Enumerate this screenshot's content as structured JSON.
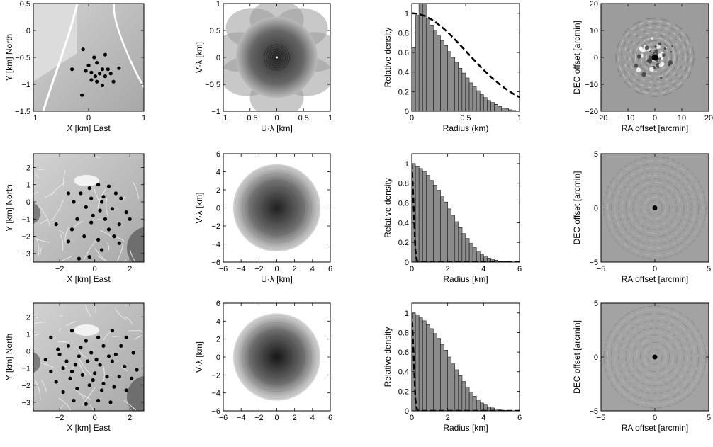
{
  "chart_data": [
    {
      "type": "scatter",
      "variant": "array-layout",
      "row": 1,
      "xlabel": "X [km] East",
      "ylabel": "Y [km] North",
      "xlim": [
        -1,
        1
      ],
      "ylim": [
        -1.5,
        0.5
      ],
      "xticks": [
        -1,
        0,
        1
      ],
      "yticks": [
        -1.5,
        -1,
        -0.5,
        0,
        0.5
      ],
      "points": [
        [
          -0.1,
          -0.35
        ],
        [
          0.1,
          -0.5
        ],
        [
          0.3,
          -0.45
        ],
        [
          -0.3,
          -0.72
        ],
        [
          -0.05,
          -0.75
        ],
        [
          0.15,
          -0.6
        ],
        [
          0.25,
          -0.72
        ],
        [
          0.35,
          -0.72
        ],
        [
          0.55,
          -0.7
        ],
        [
          0.05,
          -0.78
        ],
        [
          0.2,
          -0.8
        ],
        [
          0.3,
          -0.85
        ],
        [
          0.4,
          -0.8
        ],
        [
          0.05,
          -0.92
        ],
        [
          0.15,
          -0.95
        ],
        [
          0.25,
          -1.02
        ],
        [
          0.45,
          -0.95
        ],
        [
          -0.12,
          -1.2
        ],
        [
          0.0,
          -0.65
        ],
        [
          0.12,
          -0.85
        ]
      ],
      "colors": {
        "background": "#bdbdbd",
        "points": "#000000"
      }
    },
    {
      "type": "heatmap",
      "variant": "uv-coverage",
      "row": 1,
      "xlabel": "U·λ [km]",
      "ylabel": "V·λ [km]",
      "xlim": [
        -1,
        1
      ],
      "ylim": [
        -1,
        1
      ],
      "xticks": [
        -1,
        -0.5,
        0,
        0.5,
        1
      ],
      "yticks": [
        -1,
        -0.5,
        0,
        0.5,
        1
      ],
      "extent_km": 0.95,
      "colors": {
        "center": "#2a2a2a",
        "edge": "#bbbbbb"
      }
    },
    {
      "type": "bar",
      "variant": "radial-density",
      "row": 1,
      "xlabel": "Radius (km)",
      "ylabel": "Relative density",
      "xlim": [
        0,
        1
      ],
      "ylim": [
        0,
        1.1
      ],
      "xticks": [
        0,
        0.5,
        1
      ],
      "yticks": [
        0,
        0.2,
        0.4,
        0.6,
        0.8,
        1
      ],
      "bin_width": 0.0333,
      "values": [
        0.65,
        0.98,
        1.3,
        1.2,
        0.95,
        0.88,
        0.83,
        0.77,
        0.72,
        0.67,
        0.61,
        0.55,
        0.5,
        0.44,
        0.39,
        0.34,
        0.29,
        0.25,
        0.21,
        0.17,
        0.14,
        0.11,
        0.09,
        0.07,
        0.05,
        0.035,
        0.025,
        0.015,
        0.008,
        0.004
      ],
      "curve_scale": 1.0,
      "colors": {
        "bars": "#8c8c8c",
        "curve": "#000000"
      }
    },
    {
      "type": "heatmap",
      "variant": "synthesized-beam",
      "row": 1,
      "xlabel": "RA offset [arcmin]",
      "ylabel": "DEC offset [arcmin]",
      "xlim": [
        -20,
        20
      ],
      "ylim": [
        -20,
        20
      ],
      "xticks": [
        -20,
        -10,
        0,
        10,
        20
      ],
      "yticks": [
        -20,
        -10,
        0,
        10,
        20
      ],
      "colors": {
        "background": "#9c9c9c",
        "peak": "#000000"
      }
    },
    {
      "type": "scatter",
      "variant": "array-layout",
      "row": 2,
      "xlabel": "X [km] East",
      "ylabel": "Y [km] North",
      "xlim": [
        -3.5,
        2.8
      ],
      "ylim": [
        -3.5,
        2.8
      ],
      "xticks": [
        -2,
        0,
        2
      ],
      "yticks": [
        -3,
        -2,
        -1,
        0,
        1,
        2
      ],
      "points": [
        [
          -1.5,
          0.5
        ],
        [
          -0.3,
          0.8
        ],
        [
          0.2,
          1.0
        ],
        [
          0.8,
          0.9
        ],
        [
          1.2,
          0.5
        ],
        [
          -0.8,
          0.5
        ],
        [
          -1.2,
          0.0
        ],
        [
          -0.2,
          0.2
        ],
        [
          0.5,
          0.3
        ],
        [
          1.5,
          0.2
        ],
        [
          -2.2,
          -1.3
        ],
        [
          -1.5,
          -2.3
        ],
        [
          -0.5,
          -0.3
        ],
        [
          0.3,
          -0.5
        ],
        [
          1.0,
          -0.4
        ],
        [
          1.8,
          -0.6
        ],
        [
          -1.0,
          -1.0
        ],
        [
          -0.2,
          -1.2
        ],
        [
          0.6,
          -1.0
        ],
        [
          1.4,
          -1.3
        ],
        [
          2.0,
          -1.0
        ],
        [
          -0.6,
          -2.0
        ],
        [
          0.2,
          -2.2
        ],
        [
          1.1,
          -2.0
        ],
        [
          -0.3,
          -3.2
        ],
        [
          -0.9,
          -3.3
        ],
        [
          0.4,
          -2.8
        ],
        [
          1.4,
          -2.4
        ],
        [
          -1.3,
          -1.6
        ],
        [
          0.8,
          -1.6
        ],
        [
          -0.1,
          -0.8
        ],
        [
          0.4,
          0.0
        ]
      ],
      "colors": {
        "background": "#b0b0b0",
        "points": "#000000"
      }
    },
    {
      "type": "heatmap",
      "variant": "uv-coverage",
      "row": 2,
      "xlabel": "U·λ [km]",
      "ylabel": "V·λ [km]",
      "xlim": [
        -6,
        6
      ],
      "ylim": [
        -6,
        6
      ],
      "xticks": [
        -6,
        -4,
        -2,
        0,
        2,
        4,
        6
      ],
      "yticks": [
        -6,
        -4,
        -2,
        0,
        2,
        4,
        6
      ],
      "extent_km": 4.9,
      "colors": {
        "center": "#202020",
        "edge": "#d4d4d4"
      }
    },
    {
      "type": "bar",
      "variant": "radial-density",
      "row": 2,
      "xlabel": "Radius [km]",
      "ylabel": "Relative density",
      "xlim": [
        0,
        6
      ],
      "ylim": [
        0,
        1.1
      ],
      "xticks": [
        0,
        2,
        4,
        6
      ],
      "yticks": [
        0,
        0.2,
        0.4,
        0.6,
        0.8,
        1
      ],
      "bin_width": 0.2,
      "values": [
        1.0,
        0.97,
        0.95,
        0.92,
        0.88,
        0.83,
        0.78,
        0.73,
        0.67,
        0.61,
        0.54,
        0.47,
        0.41,
        0.35,
        0.29,
        0.24,
        0.19,
        0.15,
        0.11,
        0.08,
        0.06,
        0.04,
        0.03,
        0.02,
        0.01,
        0.006,
        0.004,
        0.003,
        0.002,
        0.001
      ],
      "curve_scale": 0.19,
      "colors": {
        "bars": "#8c8c8c",
        "curve": "#000000"
      }
    },
    {
      "type": "heatmap",
      "variant": "synthesized-beam",
      "row": 2,
      "xlabel": "RA offset [arcmin]",
      "ylabel": "DEC offset [arcmin]",
      "xlim": [
        -5,
        5
      ],
      "ylim": [
        -5,
        5
      ],
      "xticks": [
        -5,
        0,
        5
      ],
      "yticks": [
        -5,
        0,
        5
      ],
      "colors": {
        "background": "#a0a0a0",
        "peak": "#000000"
      }
    },
    {
      "type": "scatter",
      "variant": "array-layout",
      "row": 3,
      "xlabel": "X [km] East",
      "ylabel": "Y [km] North",
      "xlim": [
        -3.5,
        2.8
      ],
      "ylim": [
        -3.5,
        2.8
      ],
      "xticks": [
        -2,
        0,
        2
      ],
      "yticks": [
        -3,
        -2,
        -1,
        0,
        1,
        2
      ],
      "points": [
        [
          -2.5,
          0.8
        ],
        [
          -1.3,
          1.2
        ],
        [
          0.2,
          0.8
        ],
        [
          1.0,
          1.2
        ],
        [
          1.8,
          0.8
        ],
        [
          -2.8,
          -0.5
        ],
        [
          -2.0,
          -0.2
        ],
        [
          -1.5,
          0.3
        ],
        [
          -0.8,
          0.2
        ],
        [
          -0.2,
          -0.1
        ],
        [
          0.5,
          0.3
        ],
        [
          1.2,
          -0.2
        ],
        [
          2.2,
          -0.1
        ],
        [
          -2.5,
          -1.2
        ],
        [
          -1.8,
          -1.0
        ],
        [
          -1.1,
          -0.8
        ],
        [
          -0.4,
          -0.6
        ],
        [
          0.3,
          -0.8
        ],
        [
          1.0,
          -0.6
        ],
        [
          1.7,
          -0.9
        ],
        [
          -2.2,
          -1.8
        ],
        [
          -1.4,
          -1.6
        ],
        [
          -0.7,
          -1.4
        ],
        [
          0.0,
          -1.3
        ],
        [
          0.7,
          -1.5
        ],
        [
          1.4,
          -1.5
        ],
        [
          2.1,
          -1.6
        ],
        [
          -1.8,
          -2.4
        ],
        [
          -1.0,
          -2.2
        ],
        [
          -0.3,
          -2.0
        ],
        [
          0.4,
          -2.3
        ],
        [
          1.1,
          -2.1
        ],
        [
          1.8,
          -2.3
        ],
        [
          -1.2,
          -2.9
        ],
        [
          -0.5,
          -3.1
        ],
        [
          0.2,
          -2.9
        ],
        [
          0.9,
          -3.0
        ],
        [
          -0.9,
          -0.3
        ],
        [
          0.8,
          -0.3
        ],
        [
          -0.5,
          0.6
        ],
        [
          0.1,
          -0.5
        ],
        [
          -1.6,
          -0.6
        ],
        [
          1.5,
          0.3
        ],
        [
          -2.1,
          0.1
        ],
        [
          2.4,
          -1.1
        ],
        [
          -0.1,
          -1.7
        ],
        [
          0.5,
          -1.9
        ],
        [
          -1.3,
          -1.2
        ]
      ],
      "colors": {
        "background": "#b0b0b0",
        "points": "#000000"
      }
    },
    {
      "type": "heatmap",
      "variant": "uv-coverage",
      "row": 3,
      "xlabel": "U·λ [km]",
      "ylabel": "V·λ [km]",
      "xlim": [
        -6,
        6
      ],
      "ylim": [
        -6,
        6
      ],
      "xticks": [
        -6,
        -4,
        -2,
        0,
        2,
        4,
        6
      ],
      "yticks": [
        -6,
        -4,
        -2,
        0,
        2,
        4,
        6
      ],
      "extent_km": 4.9,
      "colors": {
        "center": "#161616",
        "edge": "#d9d9d9"
      }
    },
    {
      "type": "bar",
      "variant": "radial-density",
      "row": 3,
      "xlabel": "Radius [km]",
      "ylabel": "Relative density",
      "xlim": [
        0,
        6
      ],
      "ylim": [
        0,
        1.1
      ],
      "xticks": [
        0,
        2,
        4,
        6
      ],
      "yticks": [
        0,
        0.2,
        0.4,
        0.6,
        0.8,
        1
      ],
      "bin_width": 0.2,
      "values": [
        1.0,
        0.98,
        0.95,
        0.92,
        0.88,
        0.84,
        0.79,
        0.74,
        0.68,
        0.62,
        0.55,
        0.48,
        0.42,
        0.36,
        0.3,
        0.24,
        0.19,
        0.15,
        0.11,
        0.08,
        0.06,
        0.04,
        0.03,
        0.02,
        0.01,
        0.006,
        0.004,
        0.003,
        0.002,
        0.001
      ],
      "curve_scale": 0.19,
      "colors": {
        "bars": "#8c8c8c",
        "curve": "#000000"
      }
    },
    {
      "type": "heatmap",
      "variant": "synthesized-beam",
      "row": 3,
      "xlabel": "RA offset [arcmin]",
      "ylabel": "DEC offset [arcmin]",
      "xlim": [
        -5,
        5
      ],
      "ylim": [
        -5,
        5
      ],
      "xticks": [
        -5,
        0,
        5
      ],
      "yticks": [
        -5,
        0,
        5
      ],
      "colors": {
        "background": "#a3a3a3",
        "peak": "#000000"
      }
    }
  ]
}
